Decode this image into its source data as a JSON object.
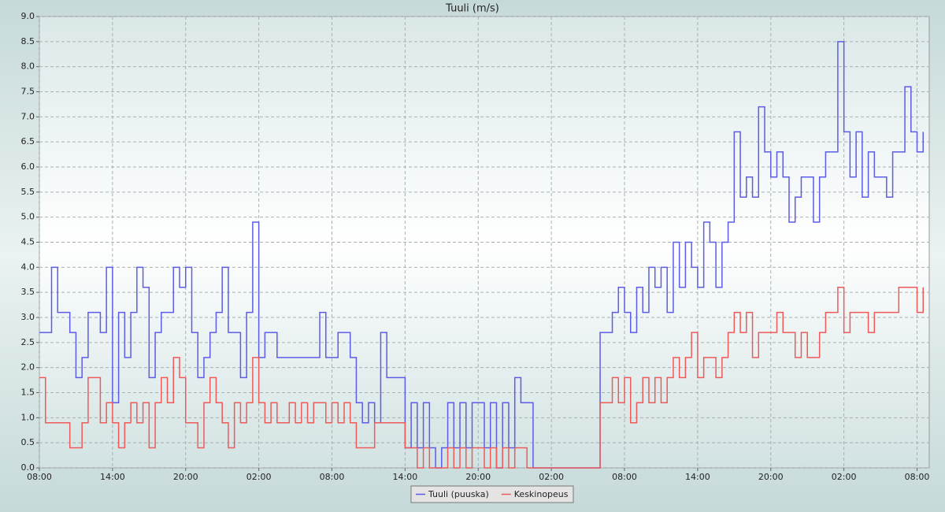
{
  "chart_data": {
    "type": "line",
    "title": "Tuuli (m/s)",
    "x": [
      0,
      0.5,
      1,
      1.5,
      2,
      2.5,
      3,
      3.5,
      4,
      4.5,
      5,
      5.5,
      6,
      6.5,
      7,
      7.5,
      8,
      8.5,
      9,
      9.5,
      10,
      10.5,
      11,
      11.5,
      12,
      12.5,
      13,
      13.5,
      14,
      14.5,
      15,
      15.5,
      16,
      16.5,
      17,
      17.5,
      18,
      18.5,
      19,
      19.5,
      20,
      20.5,
      21,
      21.5,
      22,
      22.5,
      23,
      23.5,
      24,
      24.5,
      25,
      25.5,
      26,
      26.5,
      27,
      27.5,
      28,
      28.5,
      29,
      29.5,
      30,
      30.5,
      31,
      31.5,
      32,
      32.5,
      33,
      33.5,
      34,
      34.5,
      35,
      35.5,
      36,
      36.5,
      37,
      37.5,
      38,
      38.5,
      39,
      39.5,
      40,
      40.5,
      41,
      41.5,
      42,
      42.5,
      43,
      43.5,
      44,
      44.5,
      45,
      45.5,
      46,
      46.5,
      47,
      47.5,
      48,
      48.5,
      49,
      49.5,
      50,
      50.5,
      51,
      51.5,
      52,
      52.5,
      53,
      53.5,
      54,
      54.5,
      55,
      55.5,
      56,
      56.5,
      57,
      57.5,
      58,
      58.5,
      59,
      59.5,
      60,
      60.5,
      61,
      61.5,
      62,
      62.5,
      63,
      63.5,
      64,
      64.5,
      65,
      65.5,
      66,
      66.5,
      67,
      67.5,
      68,
      68.5,
      69,
      69.5,
      70,
      70.5,
      71,
      71.5,
      72,
      72.5
    ],
    "series": [
      {
        "name": "Tuuli (puuska)",
        "color": "#5c5ce6",
        "values": [
          2.7,
          2.7,
          4.0,
          3.1,
          3.1,
          2.7,
          1.8,
          2.2,
          3.1,
          3.1,
          2.7,
          4.0,
          1.3,
          3.1,
          2.2,
          3.1,
          4.0,
          3.6,
          1.8,
          2.7,
          3.1,
          3.1,
          4.0,
          3.6,
          4.0,
          2.7,
          1.8,
          2.2,
          2.7,
          3.1,
          4.0,
          2.7,
          2.7,
          1.8,
          3.1,
          4.9,
          2.2,
          2.7,
          2.7,
          2.2,
          2.2,
          2.2,
          2.2,
          2.2,
          2.2,
          2.2,
          3.1,
          2.2,
          2.2,
          2.7,
          2.7,
          2.2,
          1.3,
          0.9,
          1.3,
          0.9,
          2.7,
          1.8,
          1.8,
          1.8,
          0.4,
          1.3,
          0.4,
          1.3,
          0.4,
          0,
          0.4,
          1.3,
          0.4,
          1.3,
          0.4,
          1.3,
          1.3,
          0.4,
          1.3,
          0,
          1.3,
          0.4,
          1.8,
          1.3,
          1.3,
          0,
          0,
          0,
          0,
          0,
          0,
          0,
          0,
          0,
          0,
          0,
          2.7,
          2.7,
          3.1,
          3.6,
          3.1,
          2.7,
          3.6,
          3.1,
          4.0,
          3.6,
          4.0,
          3.1,
          4.5,
          3.6,
          4.5,
          4.0,
          3.6,
          4.9,
          4.5,
          3.6,
          4.5,
          4.9,
          6.7,
          5.4,
          5.8,
          5.4,
          7.2,
          6.3,
          5.8,
          6.3,
          5.8,
          4.9,
          5.4,
          5.8,
          5.8,
          4.9,
          5.8,
          6.3,
          6.3,
          8.5,
          6.7,
          5.8,
          6.7,
          5.4,
          6.3,
          5.8,
          5.8,
          5.4,
          6.3,
          6.3,
          7.6,
          6.7,
          6.3,
          6.7
        ]
      },
      {
        "name": "Keskinopeus",
        "color": "#ee5a5a",
        "values": [
          1.8,
          0.9,
          0.9,
          0.9,
          0.9,
          0.4,
          0.4,
          0.9,
          1.8,
          1.8,
          0.9,
          1.3,
          0.9,
          0.4,
          0.9,
          1.3,
          0.9,
          1.3,
          0.4,
          1.3,
          1.8,
          1.3,
          2.2,
          1.8,
          0.9,
          0.9,
          0.4,
          1.3,
          1.8,
          1.3,
          0.9,
          0.4,
          1.3,
          0.9,
          1.3,
          2.2,
          1.3,
          0.9,
          1.3,
          0.9,
          0.9,
          1.3,
          0.9,
          1.3,
          0.9,
          1.3,
          1.3,
          0.9,
          1.3,
          0.9,
          1.3,
          0.9,
          0.4,
          0.4,
          0.4,
          0.9,
          0.9,
          0.9,
          0.9,
          0.9,
          0.4,
          0.4,
          0,
          0.4,
          0,
          0,
          0,
          0.4,
          0,
          0.4,
          0,
          0.4,
          0.4,
          0,
          0.4,
          0,
          0.4,
          0,
          0.4,
          0.4,
          0,
          0,
          0,
          0,
          0,
          0,
          0,
          0,
          0,
          0,
          0,
          0,
          1.3,
          1.3,
          1.8,
          1.3,
          1.8,
          0.9,
          1.3,
          1.8,
          1.3,
          1.8,
          1.3,
          1.8,
          2.2,
          1.8,
          2.2,
          2.7,
          1.8,
          2.2,
          2.2,
          1.8,
          2.2,
          2.7,
          3.1,
          2.7,
          3.1,
          2.2,
          2.7,
          2.7,
          2.7,
          3.1,
          2.7,
          2.7,
          2.2,
          2.7,
          2.2,
          2.2,
          2.7,
          3.1,
          3.1,
          3.6,
          2.7,
          3.1,
          3.1,
          3.1,
          2.7,
          3.1,
          3.1,
          3.1,
          3.1,
          3.6,
          3.6,
          3.6,
          3.1,
          3.6
        ]
      }
    ],
    "xlim": [
      0,
      73
    ],
    "xticks": [
      {
        "value": 0,
        "label": "08:00"
      },
      {
        "value": 6,
        "label": "14:00"
      },
      {
        "value": 12,
        "label": "20:00"
      },
      {
        "value": 18,
        "label": "02:00"
      },
      {
        "value": 24,
        "label": "08:00"
      },
      {
        "value": 30,
        "label": "14:00"
      },
      {
        "value": 36,
        "label": "20:00"
      },
      {
        "value": 42,
        "label": "02:00"
      },
      {
        "value": 48,
        "label": "08:00"
      },
      {
        "value": 54,
        "label": "14:00"
      },
      {
        "value": 60,
        "label": "20:00"
      },
      {
        "value": 66,
        "label": "02:00"
      },
      {
        "value": 72,
        "label": "08:00"
      }
    ],
    "ylim": [
      0,
      9
    ],
    "yticks": [
      {
        "value": 0,
        "label": "0.0"
      },
      0.5,
      {
        "value": 1,
        "label": "1.0"
      },
      1.5,
      {
        "value": 2,
        "label": "2.0"
      },
      2.5,
      {
        "value": 3,
        "label": "3.0"
      },
      3.5,
      {
        "value": 4,
        "label": "4.0"
      },
      4.5,
      {
        "value": 5,
        "label": "5.0"
      },
      5.5,
      {
        "value": 6,
        "label": "6.0"
      },
      6.5,
      {
        "value": 7,
        "label": "7.0"
      },
      7.5,
      {
        "value": 8,
        "label": "8.0"
      },
      8.5,
      {
        "value": 9,
        "label": "9.0"
      }
    ],
    "grid": true,
    "legend": "bottom"
  }
}
